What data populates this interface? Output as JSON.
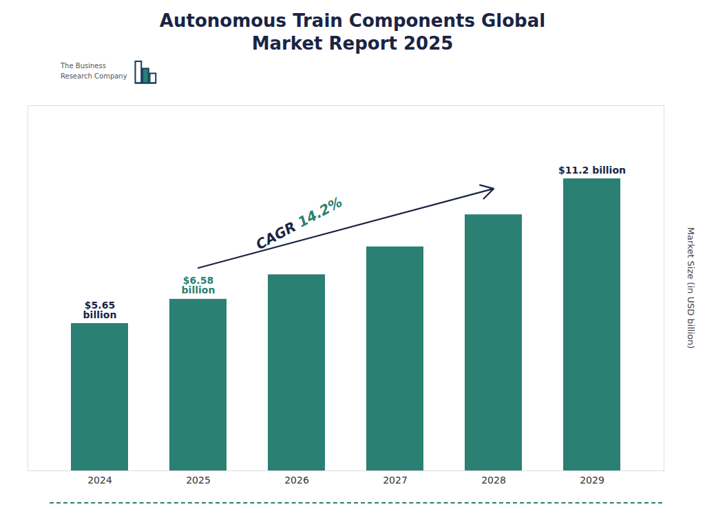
{
  "chart_data": {
    "type": "bar",
    "title": "Autonomous Train Components Global\nMarket Report 2025",
    "title_color": "#1a2444",
    "ylabel": "Market Size (in USD billion)",
    "categories": [
      "2024",
      "2025",
      "2026",
      "2027",
      "2028",
      "2029"
    ],
    "values": [
      5.65,
      6.58,
      7.52,
      8.59,
      9.82,
      11.2
    ],
    "color": "#2a8073",
    "ylim": [
      0,
      14
    ],
    "yticks": [],
    "tick_labels": "x",
    "grid": false,
    "annotations": [
      {
        "text": "$5.65\nbillion",
        "category": "2024",
        "color": "#1a2444"
      },
      {
        "text": "$6.58\nbillion",
        "category": "2025",
        "color": "#2a8073"
      },
      {
        "text": "$11.2 billion",
        "category": "2029",
        "color": "#1a2444"
      }
    ],
    "cagr": {
      "parts": [
        {
          "text": "CAGR ",
          "color": "#1a2444"
        },
        {
          "text": "14.2%",
          "color": "#2a8073"
        }
      ],
      "arrow_color": "#1a2444"
    },
    "logo": {
      "text": "The Business\nResearch Company",
      "text_color": "#555555",
      "outline_color": "#1a4060",
      "fill_color": "#2a8073"
    },
    "bottom_line_color": "#2a8073"
  }
}
